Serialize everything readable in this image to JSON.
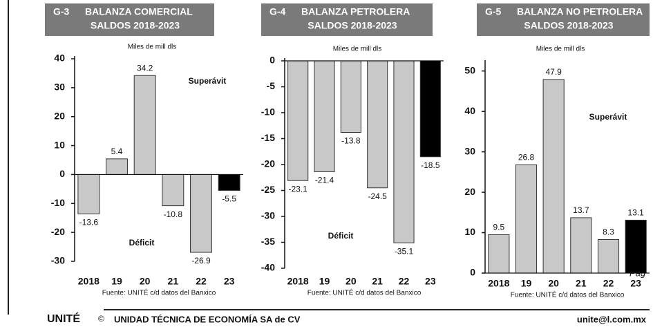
{
  "chart_data": [
    {
      "type": "bar",
      "code": "G-3",
      "title": "BALANZA COMERCIAL",
      "subtitle": "SALDOS 2018-2023",
      "unit_label": "Miles de mill dls",
      "categories": [
        "2018",
        "19",
        "20",
        "21",
        "22",
        "23"
      ],
      "values": [
        -13.6,
        5.4,
        34.2,
        -10.8,
        -26.9,
        -5.5
      ],
      "colors": [
        "#c8c8c8",
        "#c8c8c8",
        "#c8c8c8",
        "#c8c8c8",
        "#c8c8c8",
        "#000000"
      ],
      "ylim": [
        -30,
        40
      ],
      "yticks": [
        -30,
        -20,
        -10,
        0,
        10,
        20,
        30,
        40
      ],
      "annotations": [
        "Superávit",
        "Déficit"
      ],
      "source": "Fuente: UNITÉ c/d datos del Banxico"
    },
    {
      "type": "bar",
      "code": "G-4",
      "title": "BALANZA PETROLERA",
      "subtitle": "SALDOS 2018-2023",
      "unit_label": "Miles de mill dls",
      "categories": [
        "2018",
        "19",
        "20",
        "21",
        "22",
        "23"
      ],
      "values": [
        -23.1,
        -21.4,
        -13.8,
        -24.5,
        -35.1,
        -18.5
      ],
      "colors": [
        "#c8c8c8",
        "#c8c8c8",
        "#c8c8c8",
        "#c8c8c8",
        "#c8c8c8",
        "#000000"
      ],
      "ylim": [
        -40,
        0
      ],
      "yticks": [
        -40,
        -35,
        -30,
        -25,
        -20,
        -15,
        -10,
        -5,
        0
      ],
      "annotations": [
        "Déficit"
      ],
      "source": "Fuente: UNITÉ c/d datos del Banxico"
    },
    {
      "type": "bar",
      "code": "G-5",
      "title": "BALANZA NO PETROLERA",
      "subtitle": "SALDOS 2018-2023",
      "unit_label": "Miles de mill dls",
      "categories": [
        "2018",
        "19",
        "20",
        "21",
        "22",
        "23"
      ],
      "values": [
        9.5,
        26.8,
        47.9,
        13.7,
        8.3,
        13.1
      ],
      "colors": [
        "#c8c8c8",
        "#c8c8c8",
        "#c8c8c8",
        "#c8c8c8",
        "#c8c8c8",
        "#000000"
      ],
      "ylim": [
        0,
        52
      ],
      "yticks": [
        0,
        10,
        20,
        30,
        40,
        50
      ],
      "annotations": [
        "Superávit"
      ],
      "source": "Fuente: UNITÉ c/d datos del Banxico"
    }
  ],
  "footer": {
    "logo": "UNITÉ",
    "copyright": "©",
    "organization": "UNIDAD TÉCNICA DE ECONOMÍA SA de CV",
    "email": "unite@l.com.mx",
    "page_fragment": "Pag"
  }
}
